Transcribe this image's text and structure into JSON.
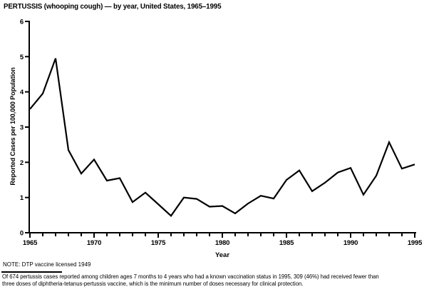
{
  "page": {
    "background": "#ffffff",
    "text_color": "#000000"
  },
  "chart_data": {
    "type": "line",
    "title": "PERTUSSIS (whooping cough) — by year, United States, 1965–1995",
    "xlabel": "Year",
    "ylabel": "Reported Cases per 100,000 Population",
    "xlim": [
      1965,
      1995
    ],
    "ylim": [
      0,
      6
    ],
    "y_ticks": [
      0,
      1,
      2,
      3,
      4,
      5,
      6
    ],
    "x_major_ticks": [
      1965,
      1970,
      1975,
      1980,
      1985,
      1990,
      1995
    ],
    "x_minor_tick_interval": 1,
    "grid": false,
    "legend": "none",
    "line_color": "#000000",
    "axis_color": "#000000",
    "x": [
      1965,
      1966,
      1967,
      1968,
      1969,
      1970,
      1971,
      1972,
      1973,
      1974,
      1975,
      1976,
      1977,
      1978,
      1979,
      1980,
      1981,
      1982,
      1983,
      1984,
      1985,
      1986,
      1987,
      1988,
      1989,
      1990,
      1991,
      1992,
      1993,
      1994,
      1995
    ],
    "values": [
      3.51,
      3.95,
      4.95,
      2.35,
      1.68,
      2.08,
      1.48,
      1.55,
      0.87,
      1.14,
      0.81,
      0.48,
      1.0,
      0.96,
      0.74,
      0.76,
      0.55,
      0.83,
      1.05,
      0.97,
      1.5,
      1.77,
      1.18,
      1.42,
      1.71,
      1.84,
      1.08,
      1.62,
      2.57,
      1.82,
      1.94
    ]
  },
  "note": "NOTE: DTP vaccine licensed 1949",
  "footnote": {
    "line1": "Of 674 pertussis cases reported among children ages 7 months to 4 years who had a known vaccination status in 1995, 309 (46%) had received fewer than",
    "line2": "three doses of diphtheria-tetanus-pertussis vaccine, which is the minimum number of doses necessary for clinical protection."
  }
}
